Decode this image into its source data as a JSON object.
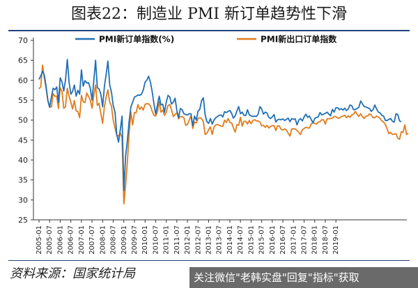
{
  "title": "图表22：制造业 PMI 新订单趋势性下滑",
  "source": "资料来源：国家统计局",
  "watermark": "关注微信\"老韩实盘\"回复\"指标\"获取",
  "colors": {
    "series1": "#1f6fb5",
    "series2": "#e07b1a",
    "frame": "#1f3f7a"
  },
  "chart_data": {
    "type": "line",
    "title": "",
    "xlabel": "",
    "ylabel": "",
    "ylim": [
      25,
      70
    ],
    "yticks": [
      25,
      30,
      35,
      40,
      45,
      50,
      55,
      60,
      65,
      70
    ],
    "xticks": [
      "2005-01",
      "2005-07",
      "2006-01",
      "2006-07",
      "2007-01",
      "2007-07",
      "2008-01",
      "2008-07",
      "2009-01",
      "2009-07",
      "2010-01",
      "2010-07",
      "2011-01",
      "2011-07",
      "2012-01",
      "2012-07",
      "2013-01",
      "2013-07",
      "2014-01",
      "2014-07",
      "2015-01",
      "2015-07",
      "2016-01",
      "2016-07",
      "2017-01",
      "2017-07",
      "2018-01",
      "2018-07",
      "2019-01"
    ],
    "grid": false,
    "legend_position": "top",
    "series": [
      {
        "name": "PMI新订单指数(%)",
        "values": [
          60.2,
          61.1,
          62.2,
          61.3,
          58.5,
          55.0,
          53.2,
          55.8,
          58.0,
          57.6,
          58.3,
          54.5,
          60.6,
          59.6,
          57.3,
          60.0,
          65.2,
          59.6,
          56.5,
          57.2,
          58.8,
          56.0,
          57.5,
          56.5,
          62.6,
          58.5,
          59.9,
          59.3,
          59.4,
          58.0,
          55.0,
          59.8,
          65.0,
          58.1,
          57.8,
          56.5,
          53.3,
          58.5,
          61.5,
          64.8,
          58.8,
          57.0,
          53.7,
          52.0,
          46.4,
          44.5,
          47.6,
          51.0,
          32.3,
          41.0,
          44.8,
          49.8,
          53.3,
          54.5,
          55.8,
          56.0,
          56.3,
          56.2,
          56.5,
          57.6,
          59.5,
          60.0,
          61.0,
          59.6,
          57.3,
          54.2,
          51.5,
          53.8,
          56.0,
          53.8,
          54.0,
          52.0,
          54.5,
          56.2,
          55.8,
          54.0,
          54.5,
          55.5,
          52.4,
          50.6,
          52.9,
          52.6,
          51.6,
          51.4,
          51.3,
          51.6,
          51.6,
          48.6,
          51.0,
          50.0,
          52.3,
          52.7,
          54.9,
          55.6,
          51.4,
          49.6,
          49.2,
          50.4,
          49.0,
          50.0,
          50.6,
          50.9,
          51.2,
          51.3,
          50.8,
          52.1,
          51.9,
          52.2,
          52.4,
          51.7,
          50.5,
          51.1,
          52.3,
          53.4,
          51.6,
          52.0,
          51.2,
          51.2,
          52.6,
          51.3,
          51.1,
          50.9,
          51.0,
          50.9,
          51.5,
          53.4,
          52.8,
          51.5,
          52.0,
          51.8,
          50.7,
          50.4,
          50.8,
          51.4,
          49.5,
          50.1,
          50.2,
          50.1,
          50.3,
          49.9,
          50.2,
          50.5,
          49.6,
          50.4,
          50.2,
          50.3,
          48.8,
          50.0,
          50.4,
          49.8,
          50.8,
          51.5,
          50.7,
          51.0,
          50.2,
          49.3,
          50.4,
          50.7,
          50.8,
          51.9,
          51.3,
          51.5,
          51.7,
          52.0,
          51.5,
          51.1,
          52.7,
          52.0,
          53.1,
          53.1,
          52.6,
          52.9,
          52.5,
          53.0,
          52.4,
          52.8,
          53.8,
          53.6,
          52.6,
          52.7,
          52.9,
          53.2,
          54.8,
          54.1,
          53.4,
          53.3,
          53.1,
          52.9,
          52.2,
          52.6,
          53.8,
          52.8,
          52.0,
          51.8,
          51.2,
          51.0,
          49.9,
          49.9,
          50.2,
          50.4,
          49.7,
          49.5,
          51.6,
          51.4,
          49.8,
          49.6
        ],
        "labels": null
      },
      {
        "name": "PMI新出口订单指数",
        "values": [
          57.8,
          58.4,
          63.8,
          60.6,
          58.0,
          54.8,
          53.3,
          53.3,
          56.6,
          56.0,
          56.0,
          52.9,
          58.1,
          57.2,
          53.0,
          53.3,
          58.0,
          56.0,
          54.5,
          52.8,
          54.9,
          52.3,
          52.2,
          50.6,
          56.2,
          54.6,
          54.4,
          56.8,
          56.0,
          55.0,
          53.0,
          56.2,
          58.8,
          53.7,
          54.2,
          51.6,
          49.2,
          53.4,
          55.8,
          57.6,
          54.5,
          53.5,
          50.0,
          48.0,
          46.2,
          46.0,
          46.8,
          45.5,
          29.0,
          33.7,
          39.4,
          46.8,
          52.0,
          48.8,
          51.9,
          51.9,
          53.9,
          52.7,
          53.3,
          52.5,
          54.0,
          54.1,
          54.1,
          53.6,
          52.3,
          51.2,
          51.0,
          52.1,
          54.6,
          52.0,
          52.5,
          51.2,
          52.0,
          53.7,
          53.9,
          52.6,
          50.9,
          51.4,
          51.9,
          50.3,
          50.9,
          50.9,
          50.6,
          48.7,
          48.9,
          50.0,
          51.1,
          47.9,
          49.5,
          49.3,
          50.4,
          50.6,
          50.4,
          49.6,
          46.4,
          46.7,
          47.6,
          48.3,
          46.4,
          48.2,
          48.8,
          48.9,
          48.7,
          48.5,
          48.4,
          50.0,
          49.4,
          50.4,
          49.4,
          49.3,
          48.1,
          47.0,
          48.9,
          48.7,
          50.7,
          48.5,
          49.7,
          49.7,
          49.0,
          49.9,
          49.1,
          49.9,
          50.1,
          49.8,
          49.8,
          49.5,
          48.6,
          48.7,
          48.2,
          48.7,
          48.0,
          48.4,
          48.6,
          48.6,
          47.4,
          48.6,
          48.5,
          47.7,
          47.5,
          47.8,
          47.5,
          46.7,
          46.0,
          47.8,
          47.8,
          47.8,
          47.4,
          46.9,
          46.4,
          47.6,
          47.9,
          48.2,
          48.1,
          48.0,
          49.0,
          49.4,
          49.2,
          49.0,
          49.5,
          49.6,
          50.1,
          50.1,
          49.0,
          50.3,
          50.3,
          50.4,
          50.5,
          50.9,
          50.9,
          50.5,
          50.5,
          50.9,
          51.0,
          51.2,
          50.6,
          51.1,
          50.7,
          51.3,
          51.5,
          52.2,
          51.5,
          50.9,
          51.6,
          50.9,
          50.4,
          51.0,
          51.0,
          51.6,
          51.3,
          50.6,
          50.6,
          51.0,
          50.8,
          50.4,
          49.8,
          49.5,
          48.9,
          47.8,
          46.6,
          46.9,
          46.4,
          46.5,
          46.6,
          45.5,
          45.2,
          47.1,
          46.9,
          48.8,
          46.4,
          46.7
        ],
        "labels": null
      }
    ]
  }
}
